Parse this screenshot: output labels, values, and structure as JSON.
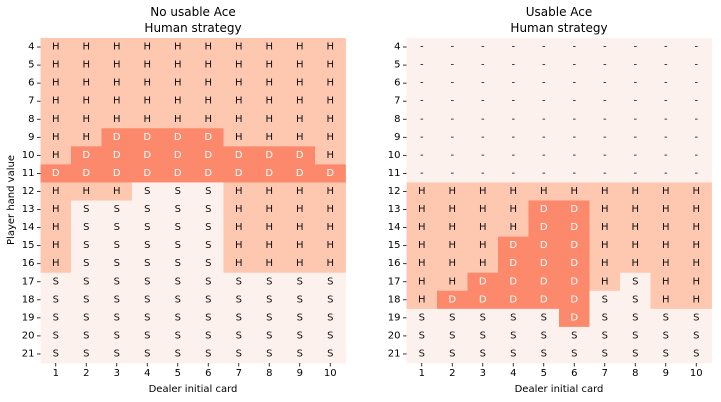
{
  "palette": {
    "S": "#fdf1ed",
    "H": "#fdc7b0",
    "D": "#fc896b",
    "-": "#fdf1ed",
    "text_light": "#ffffff",
    "text_dark": "#111111"
  },
  "chart_data": [
    {
      "type": "heatmap",
      "title_line1": "No usable Ace",
      "title_line2": "Human strategy",
      "xlabel": "Dealer initial card",
      "ylabel": "Player hand value",
      "x": [
        "1",
        "2",
        "3",
        "4",
        "5",
        "6",
        "7",
        "8",
        "9",
        "10"
      ],
      "y": [
        "4",
        "5",
        "6",
        "7",
        "8",
        "9",
        "10",
        "11",
        "12",
        "13",
        "14",
        "15",
        "16",
        "17",
        "18",
        "19",
        "20",
        "21"
      ],
      "values": [
        [
          "H",
          "H",
          "H",
          "H",
          "H",
          "H",
          "H",
          "H",
          "H",
          "H"
        ],
        [
          "H",
          "H",
          "H",
          "H",
          "H",
          "H",
          "H",
          "H",
          "H",
          "H"
        ],
        [
          "H",
          "H",
          "H",
          "H",
          "H",
          "H",
          "H",
          "H",
          "H",
          "H"
        ],
        [
          "H",
          "H",
          "H",
          "H",
          "H",
          "H",
          "H",
          "H",
          "H",
          "H"
        ],
        [
          "H",
          "H",
          "H",
          "H",
          "H",
          "H",
          "H",
          "H",
          "H",
          "H"
        ],
        [
          "H",
          "H",
          "D",
          "D",
          "D",
          "D",
          "H",
          "H",
          "H",
          "H"
        ],
        [
          "H",
          "D",
          "D",
          "D",
          "D",
          "D",
          "D",
          "D",
          "D",
          "H"
        ],
        [
          "D",
          "D",
          "D",
          "D",
          "D",
          "D",
          "D",
          "D",
          "D",
          "D"
        ],
        [
          "H",
          "H",
          "H",
          "S",
          "S",
          "S",
          "H",
          "H",
          "H",
          "H"
        ],
        [
          "H",
          "S",
          "S",
          "S",
          "S",
          "S",
          "H",
          "H",
          "H",
          "H"
        ],
        [
          "H",
          "S",
          "S",
          "S",
          "S",
          "S",
          "H",
          "H",
          "H",
          "H"
        ],
        [
          "H",
          "S",
          "S",
          "S",
          "S",
          "S",
          "H",
          "H",
          "H",
          "H"
        ],
        [
          "H",
          "S",
          "S",
          "S",
          "S",
          "S",
          "H",
          "H",
          "H",
          "H"
        ],
        [
          "S",
          "S",
          "S",
          "S",
          "S",
          "S",
          "S",
          "S",
          "S",
          "S"
        ],
        [
          "S",
          "S",
          "S",
          "S",
          "S",
          "S",
          "S",
          "S",
          "S",
          "S"
        ],
        [
          "S",
          "S",
          "S",
          "S",
          "S",
          "S",
          "S",
          "S",
          "S",
          "S"
        ],
        [
          "S",
          "S",
          "S",
          "S",
          "S",
          "S",
          "S",
          "S",
          "S",
          "S"
        ],
        [
          "S",
          "S",
          "S",
          "S",
          "S",
          "S",
          "S",
          "S",
          "S",
          "S"
        ]
      ]
    },
    {
      "type": "heatmap",
      "title_line1": "Usable Ace",
      "title_line2": "Human strategy",
      "xlabel": "Dealer initial card",
      "ylabel": "",
      "x": [
        "1",
        "2",
        "3",
        "4",
        "5",
        "6",
        "7",
        "8",
        "9",
        "10"
      ],
      "y": [
        "4",
        "5",
        "6",
        "7",
        "8",
        "9",
        "10",
        "11",
        "12",
        "13",
        "14",
        "15",
        "16",
        "17",
        "18",
        "19",
        "20",
        "21"
      ],
      "values": [
        [
          "-",
          "-",
          "-",
          "-",
          "-",
          "-",
          "-",
          "-",
          "-",
          "-"
        ],
        [
          "-",
          "-",
          "-",
          "-",
          "-",
          "-",
          "-",
          "-",
          "-",
          "-"
        ],
        [
          "-",
          "-",
          "-",
          "-",
          "-",
          "-",
          "-",
          "-",
          "-",
          "-"
        ],
        [
          "-",
          "-",
          "-",
          "-",
          "-",
          "-",
          "-",
          "-",
          "-",
          "-"
        ],
        [
          "-",
          "-",
          "-",
          "-",
          "-",
          "-",
          "-",
          "-",
          "-",
          "-"
        ],
        [
          "-",
          "-",
          "-",
          "-",
          "-",
          "-",
          "-",
          "-",
          "-",
          "-"
        ],
        [
          "-",
          "-",
          "-",
          "-",
          "-",
          "-",
          "-",
          "-",
          "-",
          "-"
        ],
        [
          "-",
          "-",
          "-",
          "-",
          "-",
          "-",
          "-",
          "-",
          "-",
          "-"
        ],
        [
          "H",
          "H",
          "H",
          "H",
          "H",
          "H",
          "H",
          "H",
          "H",
          "H"
        ],
        [
          "H",
          "H",
          "H",
          "H",
          "D",
          "D",
          "H",
          "H",
          "H",
          "H"
        ],
        [
          "H",
          "H",
          "H",
          "H",
          "D",
          "D",
          "H",
          "H",
          "H",
          "H"
        ],
        [
          "H",
          "H",
          "H",
          "D",
          "D",
          "D",
          "H",
          "H",
          "H",
          "H"
        ],
        [
          "H",
          "H",
          "H",
          "D",
          "D",
          "D",
          "H",
          "H",
          "H",
          "H"
        ],
        [
          "H",
          "H",
          "D",
          "D",
          "D",
          "D",
          "H",
          "S",
          "H",
          "H"
        ],
        [
          "H",
          "D",
          "D",
          "D",
          "D",
          "D",
          "S",
          "S",
          "H",
          "H"
        ],
        [
          "S",
          "S",
          "S",
          "S",
          "S",
          "D",
          "S",
          "S",
          "S",
          "S"
        ],
        [
          "S",
          "S",
          "S",
          "S",
          "S",
          "S",
          "S",
          "S",
          "S",
          "S"
        ],
        [
          "S",
          "S",
          "S",
          "S",
          "S",
          "S",
          "S",
          "S",
          "S",
          "S"
        ]
      ]
    }
  ]
}
